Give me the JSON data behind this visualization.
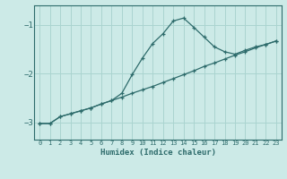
{
  "xlabel": "Humidex (Indice chaleur)",
  "bg_color": "#cceae7",
  "grid_color": "#aad4d0",
  "line_color": "#2d6b6b",
  "xlim": [
    -0.5,
    23.5
  ],
  "ylim": [
    -3.35,
    -0.6
  ],
  "yticks": [
    -3,
    -2,
    -1
  ],
  "xticks": [
    0,
    1,
    2,
    3,
    4,
    5,
    6,
    7,
    8,
    9,
    10,
    11,
    12,
    13,
    14,
    15,
    16,
    17,
    18,
    19,
    20,
    21,
    22,
    23
  ],
  "line1_x": [
    0,
    1,
    2,
    3,
    4,
    5,
    6,
    7,
    8,
    9,
    10,
    11,
    12,
    13,
    14,
    15,
    16,
    17,
    18,
    19,
    20,
    21,
    22,
    23
  ],
  "line1_y": [
    -3.02,
    -3.02,
    -2.88,
    -2.82,
    -2.76,
    -2.7,
    -2.62,
    -2.55,
    -2.48,
    -2.4,
    -2.33,
    -2.26,
    -2.18,
    -2.1,
    -2.02,
    -1.94,
    -1.85,
    -1.78,
    -1.7,
    -1.62,
    -1.55,
    -1.47,
    -1.4,
    -1.33
  ],
  "line2_x": [
    0,
    1,
    2,
    3,
    4,
    5,
    6,
    7,
    8,
    9,
    10,
    11,
    12,
    13,
    14,
    15,
    16,
    17,
    18,
    19,
    20,
    21,
    22,
    23
  ],
  "line2_y": [
    -3.02,
    -3.02,
    -2.88,
    -2.82,
    -2.76,
    -2.7,
    -2.62,
    -2.55,
    -2.4,
    -2.02,
    -1.68,
    -1.38,
    -1.18,
    -0.92,
    -0.86,
    -1.05,
    -1.25,
    -1.45,
    -1.55,
    -1.6,
    -1.52,
    -1.45,
    -1.4,
    -1.33
  ]
}
